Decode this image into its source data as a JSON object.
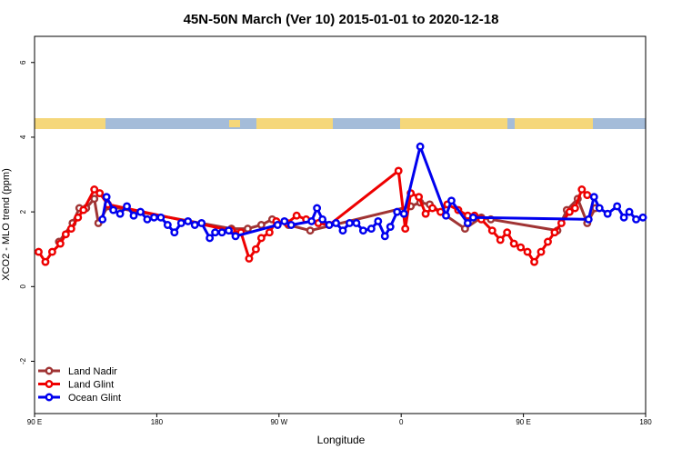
{
  "chart_data": {
    "type": "line",
    "title": "45N-50N March (Ver 10)   2015-01-01 to 2020-12-18",
    "xlabel": "Longitude",
    "ylabel": "XCO2 - MLO trend (ppm)",
    "xlim": [
      90,
      540
    ],
    "ylim": [
      -3.4,
      6.7
    ],
    "xticks": [
      {
        "value": 90,
        "label": "90 E"
      },
      180,
      {
        "value": 270,
        "label": "90 W"
      },
      {
        "value": 360,
        "label": "0"
      },
      {
        "value": 450,
        "label": "90 E"
      },
      {
        "value": 540,
        "label": "180"
      }
    ],
    "yticks": [
      -2,
      0,
      2,
      4,
      6
    ],
    "legend": "bottom-left",
    "series": [
      {
        "name": "Land Nadir",
        "color": "#a03434",
        "x": [
          108,
          118,
          123,
          128,
          134,
          137,
          144,
          235,
          247,
          257,
          265,
          277,
          293,
          367,
          374,
          381,
          407,
          419,
          426,
          475,
          482,
          490,
          497,
          503
        ],
        "values": [
          1.2,
          1.7,
          2.1,
          2.1,
          2.35,
          1.7,
          2.15,
          1.55,
          1.55,
          1.65,
          1.8,
          1.65,
          1.5,
          2.15,
          2.25,
          2.2,
          1.55,
          1.85,
          1.8,
          1.5,
          2.05,
          2.35,
          1.7,
          2.1
        ]
      },
      {
        "name": "Land Glint",
        "color": "#ee0000",
        "x": [
          93,
          98,
          103,
          109,
          113,
          117,
          122,
          126,
          134,
          138,
          144,
          235,
          242,
          248,
          253,
          257,
          263,
          268,
          276,
          283,
          290,
          299,
          307,
          358,
          363,
          367,
          373,
          378,
          383,
          389,
          394,
          402,
          409,
          414,
          419,
          427,
          433,
          438,
          443,
          448,
          453,
          458,
          463,
          468,
          473,
          478,
          484,
          488,
          493,
          497
        ],
        "values": [
          0.93,
          0.66,
          0.93,
          1.15,
          1.4,
          1.55,
          1.85,
          2.05,
          2.6,
          2.5,
          2.2,
          1.5,
          1.45,
          0.75,
          1.0,
          1.3,
          1.45,
          1.75,
          1.7,
          1.9,
          1.8,
          1.7,
          1.65,
          3.1,
          1.55,
          2.5,
          2.4,
          1.95,
          2.1,
          2.0,
          2.2,
          2.05,
          1.9,
          1.9,
          1.8,
          1.5,
          1.25,
          1.45,
          1.15,
          1.05,
          0.93,
          0.66,
          0.93,
          1.2,
          1.45,
          1.7,
          2.0,
          2.1,
          2.6,
          2.45
        ]
      },
      {
        "name": "Ocean Glint",
        "color": "#0000ee",
        "x": [
          140,
          143,
          148,
          153,
          158,
          163,
          168,
          173,
          178,
          183,
          188,
          193,
          198,
          203,
          208,
          213,
          219,
          223,
          228,
          233,
          238,
          269,
          274,
          279,
          294,
          298,
          302,
          307,
          312,
          317,
          322,
          327,
          332,
          338,
          343,
          348,
          352,
          357,
          362,
          374,
          393,
          397,
          409,
          413,
          498,
          502,
          506,
          512,
          519,
          524,
          528,
          533,
          538
        ],
        "values": [
          1.8,
          2.4,
          2.05,
          1.95,
          2.15,
          1.9,
          2.0,
          1.8,
          1.85,
          1.85,
          1.65,
          1.45,
          1.7,
          1.75,
          1.65,
          1.7,
          1.3,
          1.45,
          1.45,
          1.5,
          1.35,
          1.65,
          1.75,
          1.65,
          1.75,
          2.1,
          1.8,
          1.65,
          1.7,
          1.5,
          1.7,
          1.7,
          1.5,
          1.55,
          1.75,
          1.35,
          1.6,
          2.0,
          1.95,
          3.75,
          1.9,
          2.3,
          1.7,
          1.85,
          1.8,
          2.4,
          2.1,
          1.95,
          2.15,
          1.85,
          2.0,
          1.8,
          1.85
        ]
      }
    ]
  }
}
